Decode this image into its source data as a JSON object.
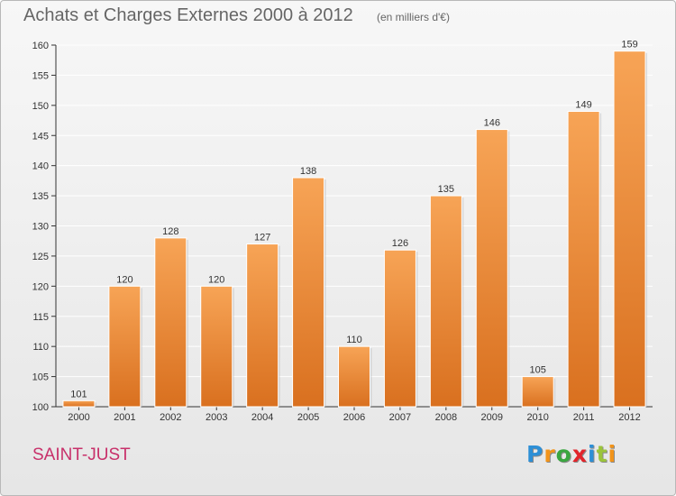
{
  "header": {
    "title": "Achats et Charges Externes 2000 à 2012",
    "subtitle": "(en milliers d'€)"
  },
  "footer": {
    "commune": "SAINT-JUST",
    "logo": "Proxiti",
    "logo_letters": [
      "P",
      "r",
      "o",
      "x",
      "i",
      "t",
      "i"
    ],
    "logo_colors": [
      "#2d8fd6",
      "#f2941a",
      "#3aa640",
      "#e2242b",
      "#2d8fd6",
      "#9bc43a",
      "#f2941a"
    ]
  },
  "colors": {
    "bar_top": "#f7a456",
    "bar_bottom": "#d9701f",
    "axis": "#333333",
    "grid": "#ffffff"
  },
  "chart_data": {
    "type": "bar",
    "categories": [
      "2000",
      "2001",
      "2002",
      "2003",
      "2004",
      "2005",
      "2006",
      "2007",
      "2008",
      "2009",
      "2010",
      "2011",
      "2012"
    ],
    "values": [
      101,
      120,
      128,
      120,
      127,
      138,
      110,
      126,
      135,
      146,
      105,
      149,
      159
    ],
    "ylim": [
      100,
      160
    ],
    "yticks": [
      100,
      105,
      110,
      115,
      120,
      125,
      130,
      135,
      140,
      145,
      150,
      155,
      160
    ],
    "grid": true,
    "xlabel": "",
    "ylabel": ""
  }
}
